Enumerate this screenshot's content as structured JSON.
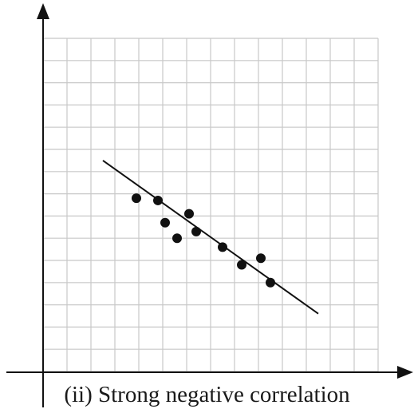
{
  "caption": "(ii) Strong negative correlation",
  "chart_data": {
    "type": "scatter",
    "title": "",
    "xlabel": "",
    "ylabel": "",
    "xlim": [
      0,
      14
    ],
    "ylim": [
      0,
      15
    ],
    "grid": true,
    "series": [
      {
        "points": [
          [
            3.9,
            7.8
          ],
          [
            4.8,
            7.7
          ],
          [
            5.1,
            6.7
          ],
          [
            5.6,
            6.0
          ],
          [
            6.1,
            7.1
          ],
          [
            6.4,
            6.3
          ],
          [
            7.5,
            5.6
          ],
          [
            8.3,
            4.8
          ],
          [
            9.1,
            5.1
          ],
          [
            9.5,
            4.0
          ]
        ]
      }
    ],
    "trend_line": {
      "from": [
        2.5,
        9.5
      ],
      "to": [
        11.5,
        2.6
      ]
    },
    "colors": {
      "points": "#111111",
      "line": "#111111",
      "grid": "#c8c8c8",
      "axes": "#111111"
    }
  }
}
